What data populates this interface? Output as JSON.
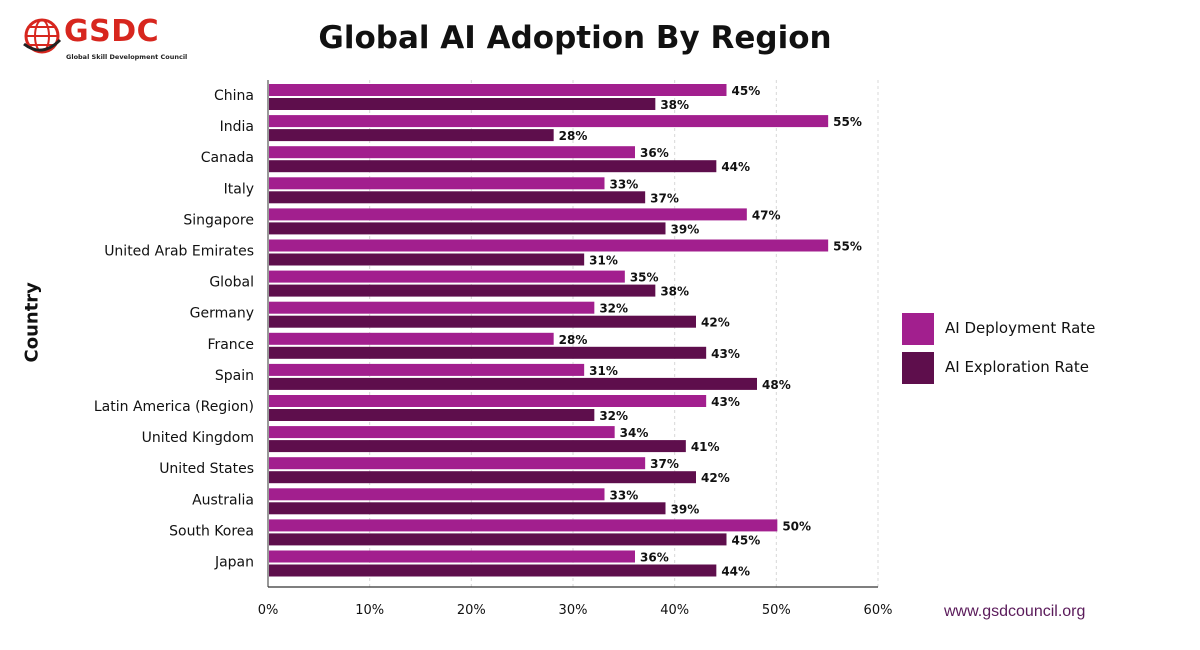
{
  "logo": {
    "text": "GSDC",
    "subtitle": "Global Skill Development Council"
  },
  "website": "www.gsdcouncil.org",
  "colors": {
    "deployment": "#a21f8e",
    "exploration": "#5e0e4c",
    "brand_red": "#d7261e"
  },
  "chart_data": {
    "type": "bar",
    "orientation": "horizontal",
    "title": "Global AI Adoption By Region",
    "xlabel": "",
    "ylabel": "Country",
    "categories": [
      "China",
      "India",
      "Canada",
      "Italy",
      "Singapore",
      "United Arab Emirates",
      "Global",
      "Germany",
      "France",
      "Spain",
      "Latin America (Region)",
      "United Kingdom",
      "United States",
      "Australia",
      "South Korea",
      "Japan"
    ],
    "series": [
      {
        "name": "AI Deployment Rate",
        "values": [
          45,
          55,
          36,
          33,
          47,
          55,
          35,
          32,
          28,
          31,
          43,
          34,
          37,
          33,
          50,
          36
        ]
      },
      {
        "name": "AI Exploration Rate",
        "values": [
          38,
          28,
          44,
          37,
          39,
          31,
          38,
          42,
          43,
          48,
          32,
          41,
          42,
          39,
          45,
          44
        ]
      }
    ],
    "value_suffix": "%",
    "xlim": [
      0,
      60
    ],
    "xticks": [
      "0%",
      "10%",
      "20%",
      "30%",
      "40%",
      "50%",
      "60%"
    ],
    "grid": "vertical dashed",
    "legend_position": "right"
  }
}
